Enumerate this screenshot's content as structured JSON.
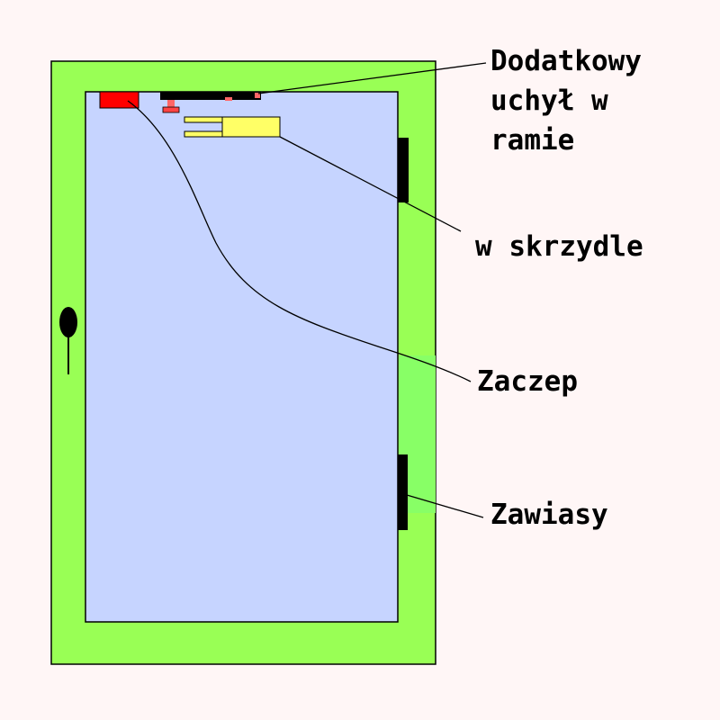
{
  "labels": {
    "frame_tilt_lines": [
      "Dodatkowy",
      "uchył w",
      "ramie"
    ],
    "sash": "w skrzydle",
    "catch": "Zaczep",
    "hinges": "Zawiasy"
  },
  "colors": {
    "background": "#fff6f6",
    "frame": "#99ff55",
    "glass": "#c6d4ff",
    "hinge_strip": "#88ff66",
    "catch": "#ff0000",
    "sash_mechanism": "#ffff66",
    "hardware": "#000000",
    "frame_tilt_marker": "#ff6666"
  },
  "icons": {
    "handle": "window-handle-icon",
    "hinge": "hinge-icon"
  }
}
